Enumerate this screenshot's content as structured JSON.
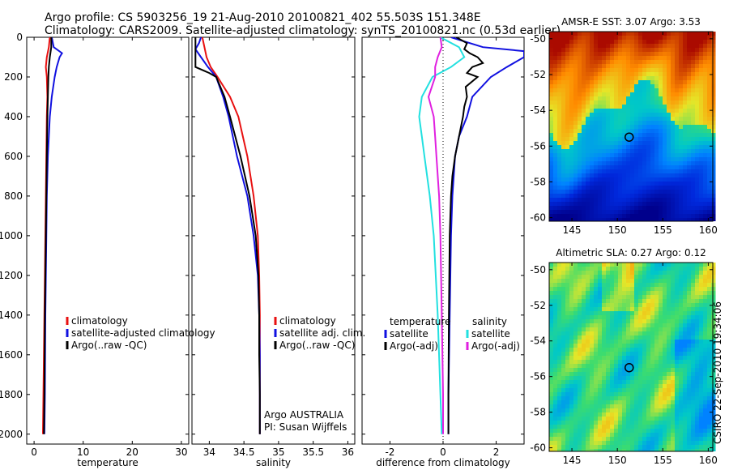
{
  "header": {
    "line1": "Argo profile: CS 5903256_19 21-Aug-2010 20100821_402 55.503S 151.348E",
    "line2": "Climatology: CARS2009. Satellite-adjusted climatology: synTS_20100821.nc (0.53d earlier)"
  },
  "credit": "CSIRO 22-Sep-2010 19:34:06",
  "colors": {
    "climatology": "#e81010",
    "satellite": "#1010e0",
    "argo": "#000000",
    "temp_satellite": "#22e0e0",
    "sal_argo": "#e020e0"
  },
  "chart_data": [
    {
      "id": "temperature",
      "type": "line",
      "xlabel": "temperature",
      "ylabel": "",
      "xlim": [
        -1.5,
        31.5
      ],
      "ylim": [
        2050,
        0
      ],
      "x_ticks": [
        "0",
        "10",
        "20",
        "30"
      ],
      "y_ticks": [
        "0",
        "200",
        "400",
        "600",
        "800",
        "1000",
        "1200",
        "1400",
        "1600",
        "1800",
        "2000"
      ],
      "legend": [
        "climatology",
        "satellite-adjusted climatology",
        "Argo(..raw -QC)"
      ],
      "legend_position": "bottom-right",
      "series": [
        {
          "name": "climatology",
          "color_key": "climatology",
          "depth": [
            0,
            50,
            100,
            150,
            200,
            300,
            400,
            600,
            800,
            1000,
            1400,
            1800,
            2000
          ],
          "values": [
            3.2,
            3.0,
            2.6,
            2.4,
            2.6,
            2.7,
            2.6,
            2.5,
            2.4,
            2.3,
            2.1,
            1.9,
            1.8
          ]
        },
        {
          "name": "satellite-adjusted climatology",
          "color_key": "satellite",
          "depth": [
            0,
            50,
            80,
            100,
            150,
            200,
            300,
            400,
            600,
            800,
            1000,
            1400,
            1800,
            2000
          ],
          "values": [
            3.6,
            4.0,
            5.7,
            5.2,
            4.6,
            4.2,
            3.6,
            3.2,
            2.8,
            2.6,
            2.5,
            2.3,
            2.2,
            2.1
          ]
        },
        {
          "name": "Argo(..raw -QC)",
          "color_key": "argo",
          "depth": [
            0,
            50,
            100,
            150,
            200,
            300,
            400,
            600,
            800,
            1000,
            1400,
            1800,
            2000
          ],
          "values": [
            3.5,
            3.5,
            3.2,
            3.0,
            2.9,
            2.8,
            2.7,
            2.6,
            2.5,
            2.4,
            2.2,
            2.1,
            2.0
          ]
        }
      ]
    },
    {
      "id": "salinity",
      "type": "line",
      "xlabel": "salinity",
      "ylabel": "",
      "xlim": [
        33.75,
        36.1
      ],
      "ylim": [
        2050,
        0
      ],
      "x_ticks": [
        "34",
        "34.5",
        "35",
        "35.5",
        "36"
      ],
      "legend": [
        "climatology",
        "satellite adj. clim.",
        "Argo(..raw -QC)"
      ],
      "legend_position": "bottom-right",
      "annotation": [
        "Argo AUSTRALIA",
        "PI: Susan Wijffels"
      ],
      "series": [
        {
          "name": "climatology",
          "color_key": "climatology",
          "depth": [
            0,
            100,
            150,
            200,
            300,
            400,
            600,
            800,
            1000,
            1200,
            1400,
            1600,
            1800,
            2000
          ],
          "values": [
            33.9,
            33.96,
            34.02,
            34.12,
            34.3,
            34.42,
            34.55,
            34.64,
            34.7,
            34.72,
            34.73,
            34.73,
            34.73,
            34.73
          ]
        },
        {
          "name": "satellite adj. clim.",
          "color_key": "satellite",
          "depth": [
            0,
            30,
            60,
            100,
            150,
            200,
            300,
            400,
            600,
            800,
            1000,
            1200,
            1400,
            1600,
            1800,
            2000
          ],
          "values": [
            33.88,
            33.85,
            33.8,
            33.88,
            33.98,
            34.1,
            34.2,
            34.28,
            34.4,
            34.55,
            34.64,
            34.7,
            34.72,
            34.73,
            34.73,
            34.73
          ]
        },
        {
          "name": "Argo(..raw -QC)",
          "color_key": "argo",
          "depth": [
            0,
            100,
            150,
            180,
            200,
            300,
            400,
            600,
            800,
            1000,
            1200,
            1400,
            1600,
            1800,
            2000
          ],
          "values": [
            33.8,
            33.8,
            33.8,
            34.0,
            34.1,
            34.22,
            34.3,
            34.45,
            34.58,
            34.67,
            34.71,
            34.72,
            34.72,
            34.73,
            34.73
          ]
        }
      ]
    },
    {
      "id": "difference",
      "type": "line",
      "xlabel": "difference from climatology",
      "ylabel": "",
      "xlim": [
        -3.05,
        3.05
      ],
      "ylim": [
        2050,
        0
      ],
      "x_ticks": [
        "-2",
        "0",
        "2"
      ],
      "legend_groups": [
        {
          "heading": "temperature",
          "items": [
            "satellite",
            "Argo(-adj)"
          ]
        },
        {
          "heading": "salinity",
          "items": [
            "satellite",
            "Argo(-adj)"
          ]
        }
      ],
      "legend_position": "bottom",
      "series": [
        {
          "name": "temperature satellite",
          "color_key": "satellite",
          "depth": [
            0,
            50,
            70,
            100,
            150,
            200,
            300,
            400,
            500,
            600,
            800,
            1000,
            1400,
            1800,
            2000
          ],
          "values": [
            0.3,
            1.5,
            3.05,
            3.05,
            2.4,
            1.8,
            1.1,
            0.9,
            0.6,
            0.45,
            0.35,
            0.3,
            0.25,
            0.2,
            0.2
          ]
        },
        {
          "name": "temperature Argo(-adj)",
          "color_key": "argo",
          "depth": [
            0,
            30,
            60,
            80,
            100,
            130,
            150,
            180,
            200,
            250,
            300,
            350,
            400,
            500,
            600,
            700,
            800,
            1000,
            1400,
            1800,
            2000
          ],
          "values": [
            0.5,
            0.9,
            0.8,
            1.0,
            1.3,
            1.5,
            1.1,
            0.9,
            1.3,
            0.85,
            0.9,
            0.8,
            0.75,
            0.6,
            0.45,
            0.35,
            0.3,
            0.25,
            0.22,
            0.2,
            0.2
          ]
        },
        {
          "name": "salinity satellite",
          "color_key": "temp_satellite",
          "depth": [
            0,
            50,
            100,
            150,
            200,
            300,
            400,
            500,
            600,
            800,
            1000,
            1400,
            1800,
            2000
          ],
          "values": [
            -0.1,
            0.6,
            0.8,
            0.3,
            -0.4,
            -0.8,
            -0.9,
            -0.8,
            -0.7,
            -0.5,
            -0.35,
            -0.2,
            -0.1,
            -0.05
          ]
        },
        {
          "name": "salinity Argo(-adj)",
          "color_key": "sal_argo",
          "depth": [
            0,
            50,
            100,
            150,
            200,
            300,
            400,
            500,
            600,
            800,
            1000,
            1400,
            1800,
            2000
          ],
          "values": [
            -0.1,
            -0.05,
            -0.2,
            -0.3,
            -0.3,
            -0.55,
            -0.35,
            -0.3,
            -0.25,
            -0.15,
            -0.1,
            -0.05,
            0.0,
            0.0
          ]
        }
      ]
    },
    {
      "id": "sst-map",
      "type": "heatmap",
      "title": "AMSR-E SST: 3.07 Argo: 3.53",
      "x_ticks": [
        "145",
        "150",
        "155",
        "160"
      ],
      "y_ticks": [
        "-50",
        "-52",
        "-54",
        "-56",
        "-58",
        "-60"
      ],
      "xlim": [
        142.5,
        160.5
      ],
      "ylim": [
        -60.2,
        -49.6
      ],
      "marker": {
        "lon": 151.3,
        "lat": -55.5
      }
    },
    {
      "id": "sla-map",
      "type": "heatmap",
      "title": "Altimetric SLA: 0.27 Argo: 0.12",
      "x_ticks": [
        "145",
        "150",
        "155",
        "160"
      ],
      "y_ticks": [
        "-50",
        "-52",
        "-54",
        "-56",
        "-58",
        "-60"
      ],
      "xlim": [
        142.5,
        160.5
      ],
      "ylim": [
        -60.2,
        -49.6
      ],
      "marker": {
        "lon": 151.3,
        "lat": -55.5
      }
    }
  ]
}
